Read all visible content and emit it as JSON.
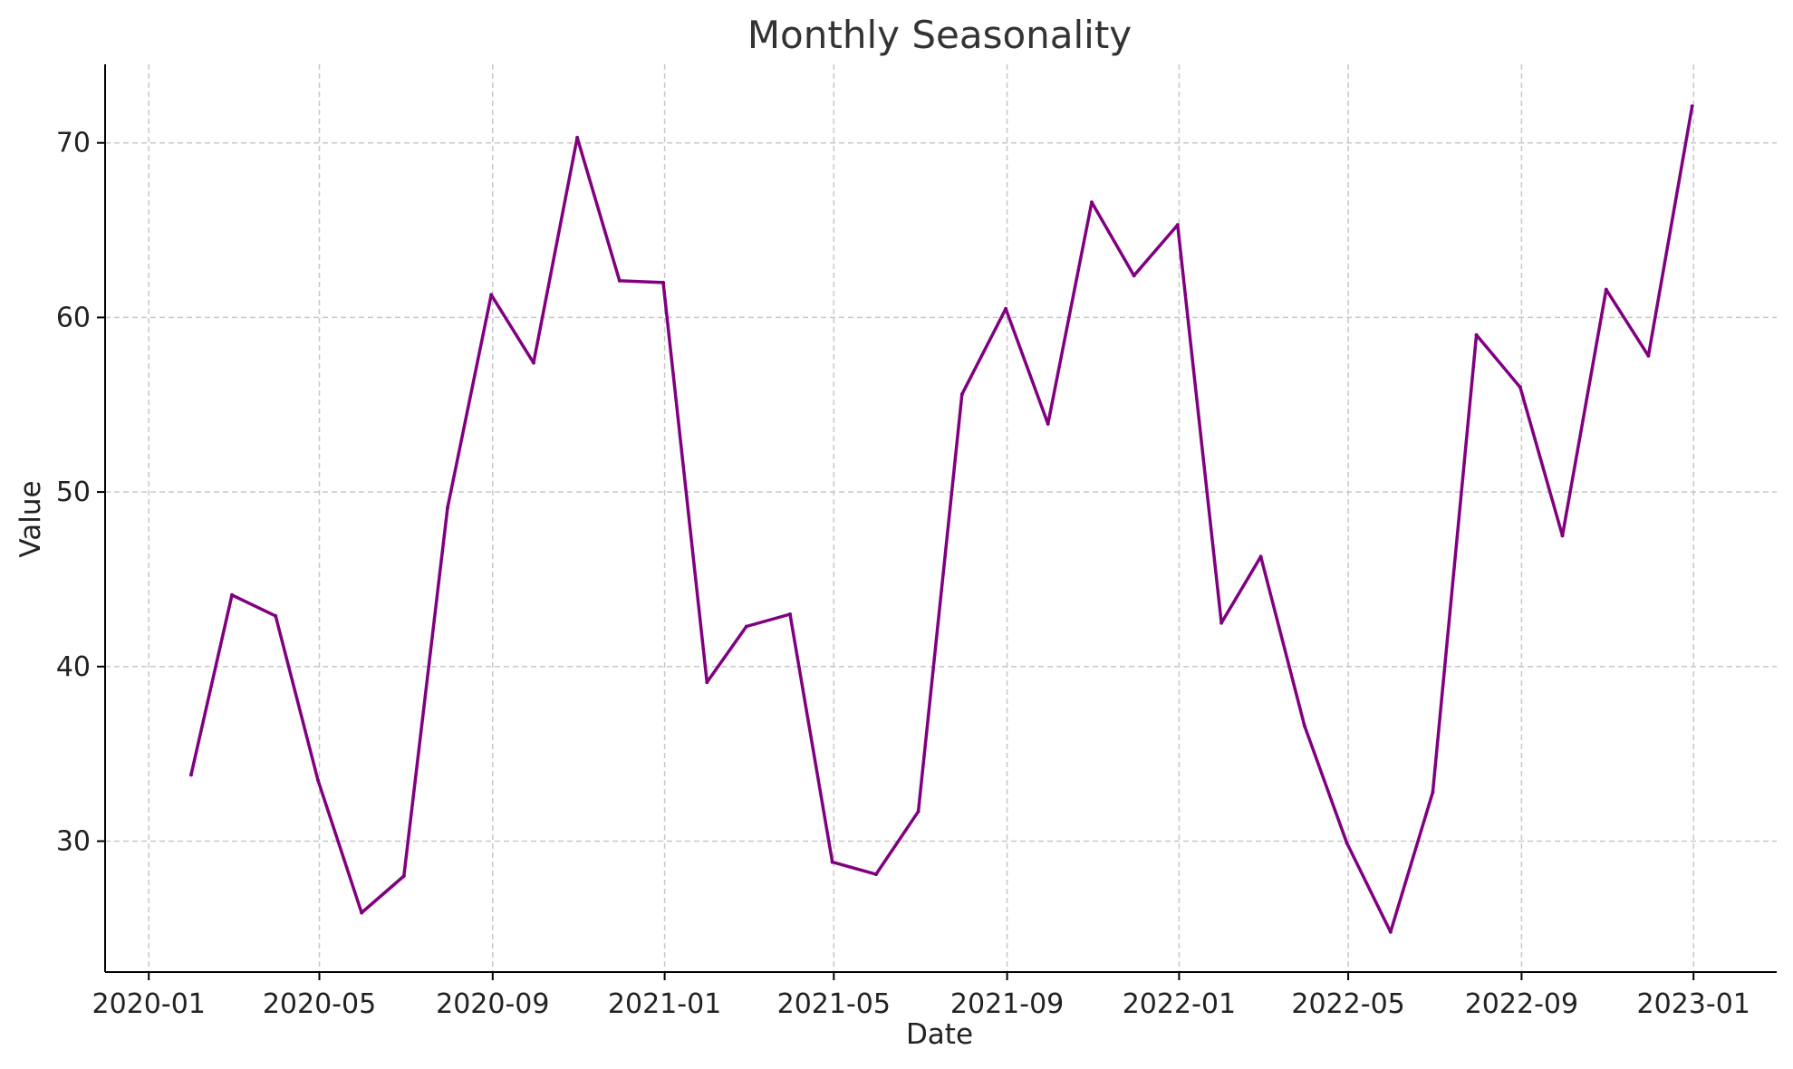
{
  "chart_data": {
    "type": "line",
    "title": "Monthly Seasonality",
    "xlabel": "Date",
    "ylabel": "Value",
    "x_range": [
      "2019-12-01",
      "2023-03-01"
    ],
    "ylim": [
      22.5,
      74.5
    ],
    "grid": true,
    "line_color": "#800080",
    "x_ticks": [
      {
        "date": "2020-01-01",
        "label": "2020-01"
      },
      {
        "date": "2020-05-01",
        "label": "2020-05"
      },
      {
        "date": "2020-09-01",
        "label": "2020-09"
      },
      {
        "date": "2021-01-01",
        "label": "2021-01"
      },
      {
        "date": "2021-05-01",
        "label": "2021-05"
      },
      {
        "date": "2021-09-01",
        "label": "2021-09"
      },
      {
        "date": "2022-01-01",
        "label": "2022-01"
      },
      {
        "date": "2022-05-01",
        "label": "2022-05"
      },
      {
        "date": "2022-09-01",
        "label": "2022-09"
      },
      {
        "date": "2023-01-01",
        "label": "2023-01"
      }
    ],
    "y_ticks": [
      30,
      40,
      50,
      60,
      70
    ],
    "series": [
      {
        "points": [
          {
            "x": "2020-01-31",
            "y": 33.8
          },
          {
            "x": "2020-02-29",
            "y": 44.1
          },
          {
            "x": "2020-03-31",
            "y": 42.9
          },
          {
            "x": "2020-04-30",
            "y": 33.5
          },
          {
            "x": "2020-05-31",
            "y": 25.9
          },
          {
            "x": "2020-06-30",
            "y": 28.0
          },
          {
            "x": "2020-07-31",
            "y": 49.1
          },
          {
            "x": "2020-08-31",
            "y": 61.3
          },
          {
            "x": "2020-09-30",
            "y": 57.4
          },
          {
            "x": "2020-10-31",
            "y": 70.3
          },
          {
            "x": "2020-11-30",
            "y": 62.1
          },
          {
            "x": "2020-12-31",
            "y": 62.0
          },
          {
            "x": "2021-01-31",
            "y": 39.1
          },
          {
            "x": "2021-02-28",
            "y": 42.3
          },
          {
            "x": "2021-03-31",
            "y": 43.0
          },
          {
            "x": "2021-04-30",
            "y": 28.8
          },
          {
            "x": "2021-05-31",
            "y": 28.1
          },
          {
            "x": "2021-06-30",
            "y": 31.7
          },
          {
            "x": "2021-07-31",
            "y": 55.6
          },
          {
            "x": "2021-08-31",
            "y": 60.5
          },
          {
            "x": "2021-09-30",
            "y": 53.9
          },
          {
            "x": "2021-10-31",
            "y": 66.6
          },
          {
            "x": "2021-11-30",
            "y": 62.4
          },
          {
            "x": "2021-12-31",
            "y": 65.3
          },
          {
            "x": "2022-01-31",
            "y": 42.5
          },
          {
            "x": "2022-02-28",
            "y": 46.3
          },
          {
            "x": "2022-03-31",
            "y": 36.6
          },
          {
            "x": "2022-04-30",
            "y": 29.9
          },
          {
            "x": "2022-05-31",
            "y": 24.8
          },
          {
            "x": "2022-06-30",
            "y": 32.8
          },
          {
            "x": "2022-07-31",
            "y": 59.0
          },
          {
            "x": "2022-08-31",
            "y": 56.0
          },
          {
            "x": "2022-09-30",
            "y": 47.5
          },
          {
            "x": "2022-10-31",
            "y": 61.6
          },
          {
            "x": "2022-11-30",
            "y": 57.8
          },
          {
            "x": "2022-12-31",
            "y": 72.1
          }
        ]
      }
    ]
  }
}
